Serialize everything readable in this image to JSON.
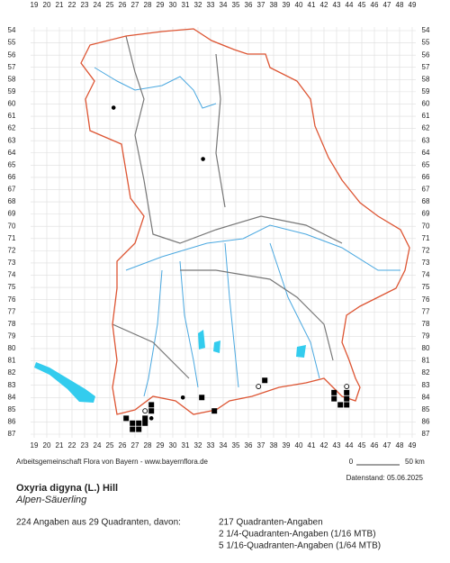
{
  "map": {
    "col_labels": [
      19,
      20,
      21,
      22,
      23,
      24,
      25,
      26,
      27,
      28,
      29,
      30,
      31,
      32,
      33,
      34,
      35,
      36,
      37,
      38,
      39,
      40,
      41,
      42,
      43,
      44,
      45,
      46,
      47,
      48,
      49
    ],
    "row_labels": [
      54,
      55,
      56,
      57,
      58,
      59,
      60,
      61,
      62,
      63,
      64,
      65,
      66,
      67,
      68,
      69,
      70,
      71,
      72,
      73,
      74,
      75,
      76,
      77,
      78,
      79,
      80,
      81,
      82,
      83,
      84,
      85,
      86,
      87
    ],
    "points": [
      {
        "col": 26.3,
        "row": 85.7,
        "kind": "square"
      },
      {
        "col": 26.8,
        "row": 86.1,
        "kind": "square"
      },
      {
        "col": 27.3,
        "row": 86.1,
        "kind": "square"
      },
      {
        "col": 26.8,
        "row": 86.6,
        "kind": "square"
      },
      {
        "col": 27.3,
        "row": 86.6,
        "kind": "square"
      },
      {
        "col": 27.8,
        "row": 86.1,
        "kind": "square"
      },
      {
        "col": 27.8,
        "row": 85.7,
        "kind": "square"
      },
      {
        "col": 28.3,
        "row": 85.1,
        "kind": "square"
      },
      {
        "col": 28.3,
        "row": 84.6,
        "kind": "square"
      },
      {
        "col": 32.3,
        "row": 84.0,
        "kind": "square"
      },
      {
        "col": 33.3,
        "row": 85.1,
        "kind": "square"
      },
      {
        "col": 37.3,
        "row": 82.6,
        "kind": "square"
      },
      {
        "col": 42.8,
        "row": 83.6,
        "kind": "square"
      },
      {
        "col": 42.8,
        "row": 84.1,
        "kind": "square"
      },
      {
        "col": 43.3,
        "row": 84.6,
        "kind": "square"
      },
      {
        "col": 43.8,
        "row": 84.6,
        "kind": "square"
      },
      {
        "col": 43.8,
        "row": 84.1,
        "kind": "square"
      },
      {
        "col": 43.8,
        "row": 83.6,
        "kind": "square"
      },
      {
        "col": 28.3,
        "row": 85.7,
        "kind": "dot"
      },
      {
        "col": 30.8,
        "row": 84.0,
        "kind": "dot"
      },
      {
        "col": 25.3,
        "row": 60.3,
        "kind": "dot"
      },
      {
        "col": 32.4,
        "row": 64.5,
        "kind": "dot"
      },
      {
        "col": 27.8,
        "row": 85.1,
        "kind": "circle"
      },
      {
        "col": 36.8,
        "row": 83.1,
        "kind": "circle"
      },
      {
        "col": 43.8,
        "row": 83.1,
        "kind": "circle"
      }
    ]
  },
  "footer": {
    "credit": "Arbeitsgemeinschaft Flora von Bayern - www.bayernflora.de",
    "scale_zero": "0",
    "scale_end": "50 km",
    "date": "Datenstand: 05.06.2025"
  },
  "species": {
    "name": "Oxyria digyna (L.) Hill",
    "common": "Alpen-Säuerling"
  },
  "stats": {
    "summary": "224 Angaben aus 29 Quadranten, davon:",
    "lines": [
      "217 Quadranten-Angaben",
      "2 1/4-Quadranten-Angaben (1/16 MTB)",
      "5 1/16-Quadranten-Angaben (1/64 MTB)"
    ]
  }
}
